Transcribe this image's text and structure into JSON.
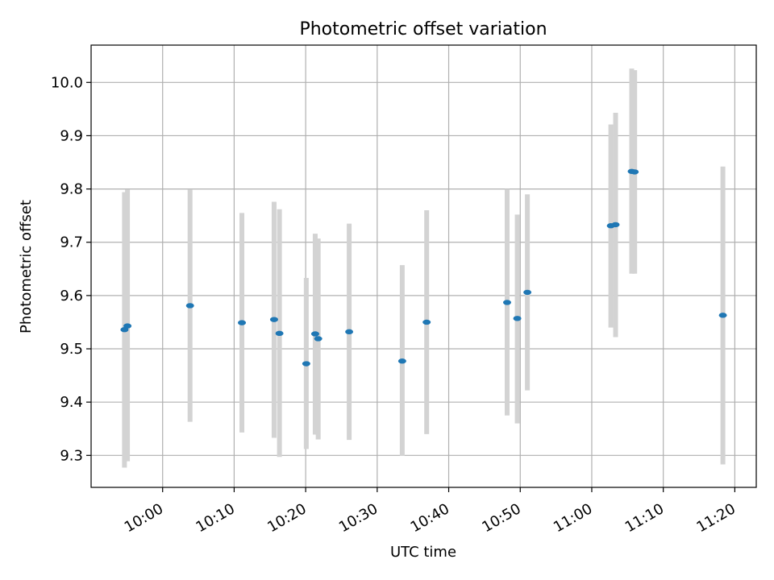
{
  "chart_data": {
    "type": "scatter",
    "title": "Photometric offset variation",
    "xlabel": "UTC time",
    "ylabel": "Photometric offset",
    "x_ticks": [
      "10:00",
      "10:10",
      "10:20",
      "10:30",
      "10:40",
      "10:50",
      "11:00",
      "11:10",
      "11:20"
    ],
    "y_ticks": [
      "9.3",
      "9.4",
      "9.5",
      "9.6",
      "9.7",
      "9.8",
      "9.9",
      "10.0"
    ],
    "xlim": [
      "09:50",
      "11:23"
    ],
    "ylim": [
      9.24,
      10.07
    ],
    "grid": true,
    "colors": {
      "points": "#1f77b4",
      "errorbars": "#d3d3d3",
      "grid": "#b0b0b0"
    },
    "series": [
      {
        "points": [
          {
            "x": "09:54:40",
            "y": 9.536,
            "low": 9.277,
            "high": 9.794
          },
          {
            "x": "09:55:05",
            "y": 9.543,
            "low": 9.289,
            "high": 9.799
          },
          {
            "x": "10:03:50",
            "y": 9.581,
            "low": 9.363,
            "high": 9.799
          },
          {
            "x": "10:11:05",
            "y": 9.549,
            "low": 9.343,
            "high": 9.755
          },
          {
            "x": "10:15:35",
            "y": 9.555,
            "low": 9.333,
            "high": 9.776
          },
          {
            "x": "10:16:20",
            "y": 9.529,
            "low": 9.297,
            "high": 9.762
          },
          {
            "x": "10:20:05",
            "y": 9.472,
            "low": 9.312,
            "high": 9.633
          },
          {
            "x": "10:21:20",
            "y": 9.528,
            "low": 9.339,
            "high": 9.716
          },
          {
            "x": "10:21:45",
            "y": 9.519,
            "low": 9.33,
            "high": 9.707
          },
          {
            "x": "10:26:05",
            "y": 9.532,
            "low": 9.329,
            "high": 9.735
          },
          {
            "x": "10:33:30",
            "y": 9.477,
            "low": 9.299,
            "high": 9.657
          },
          {
            "x": "10:36:55",
            "y": 9.55,
            "low": 9.34,
            "high": 9.76
          },
          {
            "x": "10:48:10",
            "y": 9.587,
            "low": 9.375,
            "high": 9.8
          },
          {
            "x": "10:49:35",
            "y": 9.557,
            "low": 9.36,
            "high": 9.752
          },
          {
            "x": "10:51:00",
            "y": 9.606,
            "low": 9.422,
            "high": 9.79
          },
          {
            "x": "11:02:40",
            "y": 9.731,
            "low": 9.54,
            "high": 9.921
          },
          {
            "x": "11:03:20",
            "y": 9.733,
            "low": 9.522,
            "high": 9.943
          },
          {
            "x": "11:05:35",
            "y": 9.833,
            "low": 9.641,
            "high": 10.026
          },
          {
            "x": "11:06:00",
            "y": 9.832,
            "low": 9.641,
            "high": 10.023
          },
          {
            "x": "11:18:20",
            "y": 9.563,
            "low": 9.283,
            "high": 9.842
          }
        ]
      }
    ]
  }
}
